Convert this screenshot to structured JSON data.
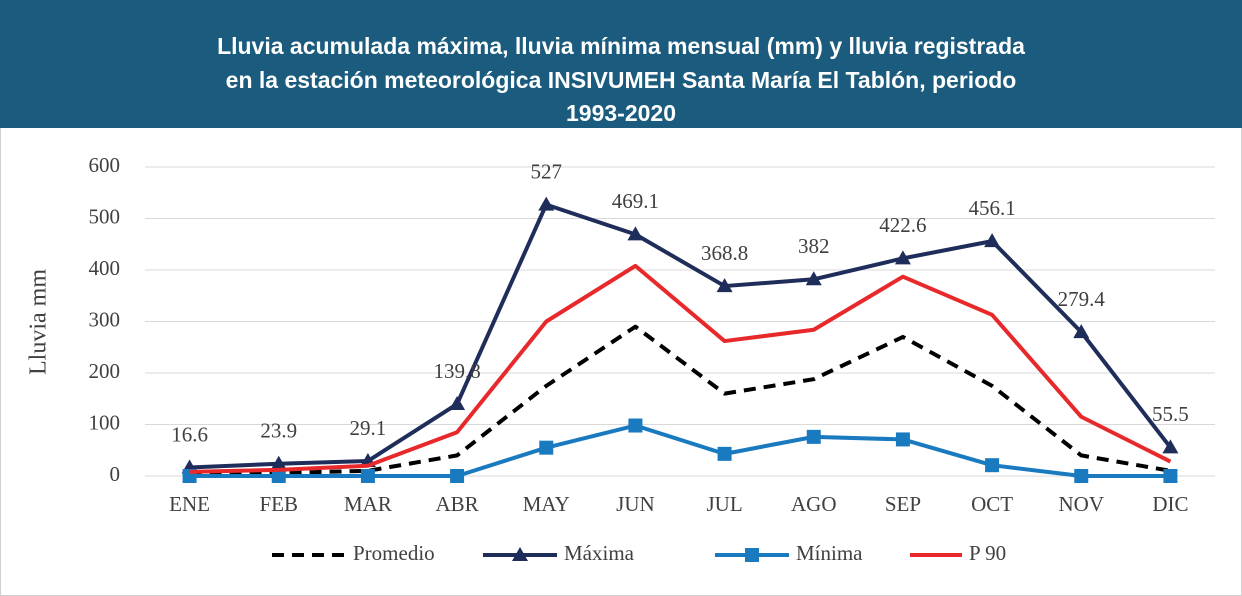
{
  "chart_data": {
    "type": "line",
    "title": [
      "Lluvia acumulada máxima, lluvia mínima mensual (mm) y lluvia registrada",
      "en la estación meteorológica INSIVUMEH Santa María El Tablón, periodo",
      "1993-2020"
    ],
    "y_label": "Lluvia mm",
    "categories": [
      "ENE",
      "FEB",
      "MAR",
      "ABR",
      "MAY",
      "JUN",
      "JUL",
      "AGO",
      "SEP",
      "OCT",
      "NOV",
      "DIC"
    ],
    "series": [
      {
        "name": "Promedio",
        "color": "#000000",
        "dash": true,
        "values": [
          5,
          6,
          10,
          40,
          175,
          290,
          160,
          188,
          270,
          175,
          40,
          10
        ]
      },
      {
        "name": "Máxima",
        "color": "#1f2d5a",
        "marker": "triangle",
        "data_labels": true,
        "values": [
          16.6,
          23.9,
          29.1,
          139.8,
          527,
          469.1,
          368.8,
          382,
          422.6,
          456.1,
          279.4,
          55.5
        ]
      },
      {
        "name": "Mínima",
        "color": "#1a7ac0",
        "marker": "square",
        "values": [
          0,
          0,
          0,
          0,
          55,
          98,
          43,
          76,
          71,
          21,
          0,
          0
        ]
      },
      {
        "name": "P 90",
        "color": "#e8292b",
        "values": [
          8,
          12,
          20,
          85,
          300,
          408,
          262,
          284,
          387,
          313,
          115,
          28
        ]
      }
    ],
    "ylim": [
      0,
      600
    ],
    "yticks": [
      0,
      100,
      200,
      300,
      400,
      500,
      600
    ],
    "grid": true,
    "legend": "bottom"
  }
}
